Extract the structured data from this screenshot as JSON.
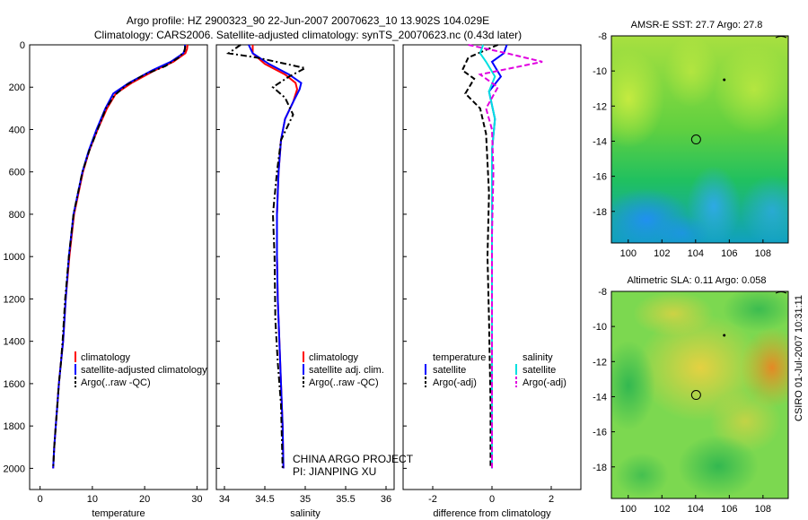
{
  "title_line1": "Argo profile: HZ 2900323_90 22-Jun-2007 20070623_10 13.902S 104.029E",
  "title_line2": "Climatology: CARS2006. Satellite-adjusted climatology: synTS_20070623.nc (0.43d later)",
  "credit_vertical": "CSIRO 01-Jul-2007 10:31:11",
  "chart_data": [
    {
      "id": "temperature",
      "type": "line",
      "xlabel": "temperature",
      "ylabel": "",
      "xlim": [
        -2,
        32
      ],
      "ylim": [
        2100,
        0
      ],
      "xticks": [
        0,
        10,
        20,
        30
      ],
      "xtick_labels": [
        "0",
        "10",
        "20",
        "30"
      ],
      "yticks": [
        0,
        200,
        400,
        600,
        800,
        1000,
        1200,
        1400,
        1600,
        1800,
        2000
      ],
      "ytick_labels": [
        "0",
        "200",
        "400",
        "600",
        "800",
        "1000",
        "1200",
        "1400",
        "1600",
        "1800",
        "2000"
      ],
      "series": [
        {
          "name": "climatology",
          "color": "#ff0000",
          "dash": "solid",
          "x": [
            28.2,
            28.1,
            27.8,
            25.5,
            22.0,
            17.5,
            14.5,
            12.8,
            11.0,
            9.4,
            8.2,
            6.5,
            5.6,
            4.9,
            4.4,
            4.0,
            3.6,
            3.3,
            3.0,
            2.7,
            2.5
          ],
          "y": [
            0,
            20,
            40,
            80,
            120,
            180,
            230,
            300,
            400,
            500,
            600,
            800,
            1000,
            1200,
            1400,
            1500,
            1600,
            1700,
            1800,
            1900,
            2000
          ]
        },
        {
          "name": "satellite-adjusted climatology",
          "color": "#0000ff",
          "dash": "solid",
          "x": [
            27.7,
            27.7,
            27.4,
            25.0,
            21.5,
            17.0,
            14.0,
            12.5,
            10.8,
            9.3,
            8.1,
            6.4,
            5.5,
            4.9,
            4.4,
            4.0,
            3.6,
            3.3,
            3.0,
            2.7,
            2.5
          ],
          "y": [
            0,
            20,
            40,
            80,
            120,
            180,
            230,
            300,
            400,
            500,
            600,
            800,
            1000,
            1200,
            1400,
            1500,
            1600,
            1700,
            1800,
            1900,
            2000
          ]
        },
        {
          "name": "Argo(..raw -QC)",
          "color": "#000000",
          "dash": "dashdot",
          "x": [
            27.8,
            27.6,
            26.5,
            24.0,
            20.0,
            16.5,
            14.2,
            12.6,
            11.0,
            9.4,
            8.1,
            6.4,
            5.5,
            4.8,
            4.3,
            4.0,
            3.6,
            3.3,
            3.0,
            2.7,
            2.5
          ],
          "y": [
            5,
            30,
            60,
            100,
            140,
            190,
            240,
            300,
            400,
            500,
            600,
            800,
            1000,
            1200,
            1400,
            1500,
            1600,
            1700,
            1800,
            1900,
            2000
          ]
        }
      ],
      "legend": [
        "climatology",
        "satellite-adjusted climatology",
        "Argo(..raw -QC)"
      ]
    },
    {
      "id": "salinity",
      "type": "line",
      "xlabel": "salinity",
      "ylabel": "",
      "xlim": [
        33.9,
        36.1
      ],
      "ylim": [
        2100,
        0
      ],
      "xticks": [
        34,
        34.5,
        35,
        35.5,
        36
      ],
      "xtick_labels": [
        "34",
        "34.5",
        "35",
        "35.5",
        "36"
      ],
      "series": [
        {
          "name": "climatology",
          "color": "#ff0000",
          "dash": "solid",
          "x": [
            34.35,
            34.35,
            34.5,
            34.75,
            34.88,
            34.9,
            34.85,
            34.75,
            34.7,
            34.67,
            34.65,
            34.65,
            34.66,
            34.68,
            34.7,
            34.72,
            34.73
          ],
          "y": [
            0,
            40,
            90,
            140,
            180,
            210,
            270,
            350,
            450,
            600,
            800,
            1000,
            1200,
            1400,
            1600,
            1800,
            2000
          ]
        },
        {
          "name": "satellite adj. clim.",
          "color": "#0000ff",
          "dash": "solid",
          "x": [
            34.3,
            34.35,
            34.55,
            34.8,
            34.95,
            34.93,
            34.85,
            34.75,
            34.7,
            34.67,
            34.65,
            34.65,
            34.66,
            34.68,
            34.7,
            34.72,
            34.73
          ],
          "y": [
            0,
            40,
            90,
            140,
            180,
            210,
            270,
            350,
            450,
            600,
            800,
            1000,
            1200,
            1400,
            1600,
            1800,
            2000
          ]
        },
        {
          "name": "Argo(..raw -QC)",
          "color": "#000000",
          "dash": "dashdot",
          "x": [
            34.2,
            34.05,
            34.4,
            35.0,
            34.8,
            34.6,
            34.75,
            34.85,
            34.7,
            34.65,
            34.6,
            34.62,
            34.63,
            34.66,
            34.7,
            34.72
          ],
          "y": [
            0,
            40,
            60,
            110,
            150,
            200,
            250,
            330,
            450,
            600,
            800,
            1000,
            1300,
            1500,
            1700,
            2000
          ]
        }
      ],
      "legend": [
        "climatology",
        "satellite adj. clim.",
        "Argo(..raw -QC)"
      ],
      "annotations": [
        "CHINA ARGO PROJECT",
        "PI: JIANPING XU"
      ]
    },
    {
      "id": "difference",
      "type": "line",
      "xlabel": "difference from climatology",
      "ylabel": "",
      "xlim": [
        -3,
        3
      ],
      "ylim": [
        2100,
        0
      ],
      "xticks": [
        -2,
        0,
        2
      ],
      "xtick_labels": [
        "-2",
        "0",
        "2"
      ],
      "series": [
        {
          "name": "temperature satellite",
          "color": "#0000ff",
          "dash": "solid",
          "x": [
            0.5,
            0.4,
            0.0,
            0.3,
            -0.1,
            0.1,
            0.0,
            0.0,
            0.0,
            0.0,
            0.0,
            0.0
          ],
          "y": [
            0,
            40,
            80,
            150,
            220,
            350,
            500,
            800,
            1100,
            1400,
            1700,
            2000
          ]
        },
        {
          "name": "temperature Argo(-adj)",
          "color": "#000000",
          "dash": "dashed",
          "x": [
            0.2,
            -0.8,
            -1.0,
            -0.6,
            -0.9,
            -0.4,
            -0.2,
            -0.1,
            -0.15,
            -0.1,
            -0.05,
            -0.05
          ],
          "y": [
            0,
            60,
            120,
            160,
            230,
            300,
            420,
            700,
            1000,
            1300,
            1700,
            2000
          ]
        },
        {
          "name": "salinity satellite",
          "color": "#00e0e0",
          "dash": "solid",
          "x": [
            -0.3,
            -0.4,
            -0.2,
            0.1,
            -0.1,
            0.1,
            0.0,
            0.0,
            0.0,
            0.0,
            0.0,
            0.0
          ],
          "y": [
            0,
            40,
            80,
            150,
            220,
            350,
            500,
            800,
            1100,
            1400,
            1700,
            2000
          ]
        },
        {
          "name": "salinity Argo(-adj)",
          "color": "#e000e0",
          "dash": "dashed",
          "x": [
            -0.8,
            0.5,
            1.7,
            -0.4,
            0.2,
            -0.2,
            0.0,
            0.05,
            0.0,
            0.0,
            0.0,
            0.0
          ],
          "y": [
            0,
            40,
            80,
            140,
            200,
            300,
            400,
            600,
            900,
            1200,
            1600,
            2000
          ]
        }
      ],
      "legend_headers": [
        "temperature",
        "salinity"
      ],
      "legend": [
        "satellite",
        "Argo(-adj)",
        "satellite",
        "Argo(-adj)"
      ]
    },
    {
      "id": "sst_map",
      "type": "heatmap",
      "title": "AMSR-E SST: 27.7 Argo: 27.8",
      "xlim": [
        99,
        109.5
      ],
      "ylim": [
        -19.8,
        -8
      ],
      "xticks": [
        100,
        102,
        104,
        106,
        108
      ],
      "xtick_labels": [
        "100",
        "102",
        "104",
        "106",
        "108"
      ],
      "yticks": [
        -8,
        -10,
        -12,
        -14,
        -16,
        -18
      ],
      "ytick_labels": [
        "-8",
        "-10",
        "-12",
        "-14",
        "-16",
        "-18"
      ],
      "marker": {
        "lon": 104.029,
        "lat": -13.902
      }
    },
    {
      "id": "sla_map",
      "type": "heatmap",
      "title": "Altimetric SLA: 0.11 Argo: 0.058",
      "xlim": [
        99,
        109.5
      ],
      "ylim": [
        -19.8,
        -8
      ],
      "xticks": [
        100,
        102,
        104,
        106,
        108
      ],
      "xtick_labels": [
        "100",
        "102",
        "104",
        "106",
        "108"
      ],
      "yticks": [
        -8,
        -10,
        -12,
        -14,
        -16,
        -18
      ],
      "ytick_labels": [
        "-8",
        "-10",
        "-12",
        "-14",
        "-16",
        "-18"
      ],
      "marker": {
        "lon": 104.029,
        "lat": -13.902
      }
    }
  ]
}
